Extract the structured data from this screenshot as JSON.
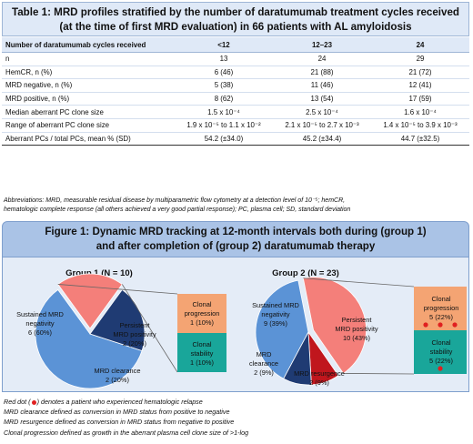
{
  "table1": {
    "title_line1": "Table 1: MRD profiles stratified by the number of daratumumab treatment cycles received",
    "title_line2": "(at the time of first MRD evaluation) in 66 patients with AL amyloidosis",
    "headers": [
      "Number of daratumumab cycles received",
      "<12",
      "12–23",
      "24"
    ],
    "rows": [
      [
        "n",
        "13",
        "24",
        "29"
      ],
      [
        "HemCR, n (%)",
        "6 (46)",
        "21 (88)",
        "21 (72)"
      ],
      [
        "MRD negative, n (%)",
        "5 (38)",
        "11 (46)",
        "12 (41)"
      ],
      [
        "MRD positive, n (%)",
        "8 (62)",
        "13 (54)",
        "17 (59)"
      ],
      [
        "Median aberrant PC clone size",
        "1.5 x 10⁻⁴",
        "2.5 x 10⁻⁴",
        "1.6 x 10⁻⁴"
      ],
      [
        "Range of aberrant PC clone size",
        "1.9 x 10⁻⁵ to 1.1 x 10⁻²",
        "2.1 x 10⁻⁵ to 2.7 x 10⁻³",
        "1.4 x 10⁻⁵ to 3.9 x 10⁻³"
      ],
      [
        "Aberrant PCs / total PCs, mean % (SD)",
        "54.2 (±34.0)",
        "45.2 (±34.4)",
        "44.7 (±32.5)"
      ]
    ],
    "abbrev_line1": "Abbreviations: MRD, measurable residual disease by multiparametric flow cytometry at a detection level of 10⁻⁵; hemCR,",
    "abbrev_line2": "hematologic complete response (all others achieved a very good partial response); PC, plasma cell; SD, standard deviation"
  },
  "figure1": {
    "title_line1": "Figure 1: Dynamic MRD tracking at 12-month intervals both during (group 1)",
    "title_line2": "and after completion of (group 2) daratumumab therapy",
    "group1": {
      "title": "Group 1 (N = 10)",
      "slices": [
        {
          "label1": "Sustained MRD",
          "label2": "negativity",
          "label3": "6 (60%)",
          "value": 6,
          "color": "#5b93d6"
        },
        {
          "label1": "Persistent",
          "label2": "MRD positivity",
          "label3": "2 (20%)",
          "value": 2,
          "color": "#f47f7a"
        },
        {
          "label1": "MRD clearance",
          "label2": "2 (20%)",
          "label3": "",
          "value": 2,
          "color": "#1f3b73"
        }
      ],
      "boxes": [
        {
          "label1": "Clonal",
          "label2": "progression",
          "label3": "1 (10%)",
          "value": 1,
          "color": "#f4a473"
        },
        {
          "label1": "Clonal",
          "label2": "stability",
          "label3": "1 (10%)",
          "value": 1,
          "color": "#19a69a"
        }
      ]
    },
    "group2": {
      "title": "Group 2 (N = 23)",
      "slices": [
        {
          "label1": "Sustained MRD",
          "label2": "negativity",
          "label3": "9 (39%)",
          "value": 9,
          "color": "#5b93d6"
        },
        {
          "label1": "Persistent",
          "label2": "MRD positivity",
          "label3": "10 (43%)",
          "value": 10,
          "color": "#f47f7a"
        },
        {
          "label1": "MRD resurgence",
          "label2": "2 (9%)",
          "label3": "",
          "value": 2,
          "color": "#c0161d"
        },
        {
          "label1": "MRD",
          "label2": "clearance",
          "label3": "2 (9%)",
          "value": 2,
          "color": "#1f3b73"
        }
      ],
      "boxes": [
        {
          "label1": "Clonal",
          "label2": "progression",
          "label3": "5 (22%)",
          "value": 5,
          "relapse_dots": 3,
          "color": "#f4a473"
        },
        {
          "label1": "Clonal",
          "label2": "stability",
          "label3": "5 (22%)",
          "value": 5,
          "relapse_dots": 1,
          "color": "#19a69a"
        }
      ]
    }
  },
  "footnotes": {
    "red_dot_pre": "Red dot (",
    "red_dot_post": ") denotes a patient who experienced hematologic relapse",
    "line2": "MRD clearance defined as conversion in MRD status from positive to negative",
    "line3": "MRD resurgence defined as conversion in MRD status from negative to positive",
    "line4": "Clonal progression defined as growth in the aberrant plasma cell clone size of >1-log"
  },
  "colors": {
    "header_bg": "#dfe9f7",
    "fig_title_bg": "#aac3e6",
    "fig_bg": "#e4ecf7",
    "relapse_dot": "#e02020"
  }
}
